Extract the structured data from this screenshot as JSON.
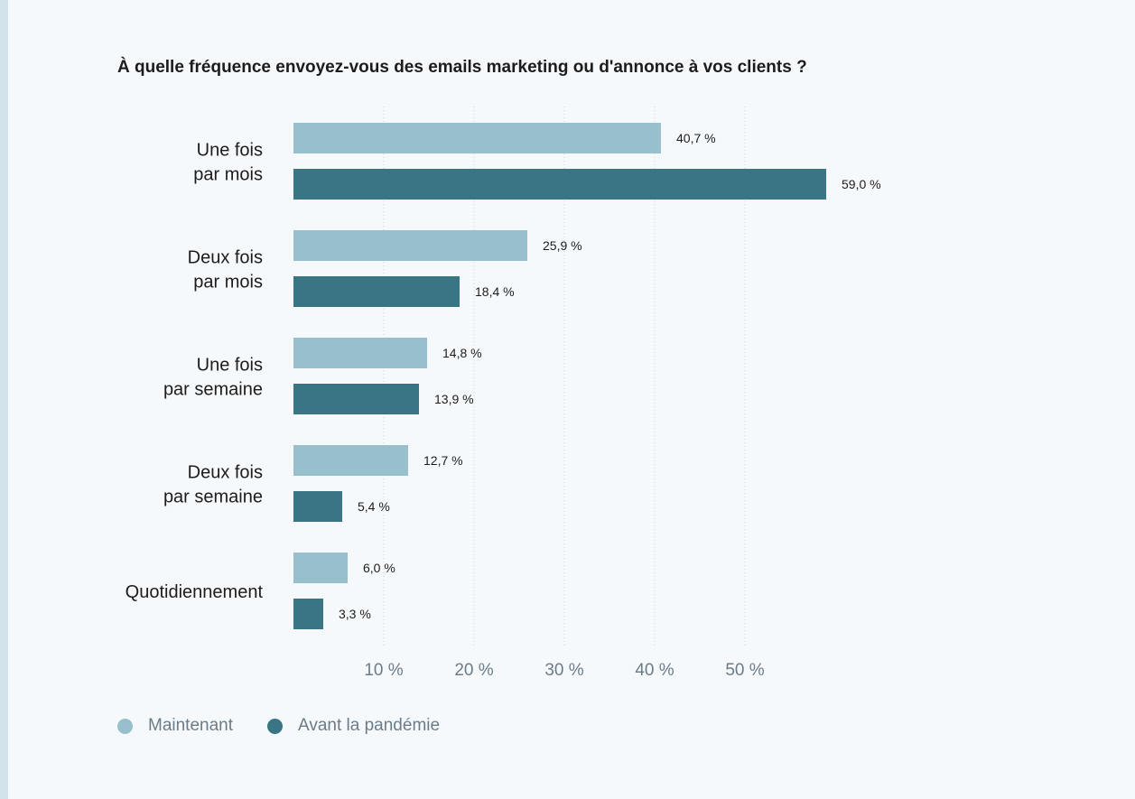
{
  "chart_data": {
    "type": "bar",
    "orientation": "horizontal",
    "title": "À quelle fréquence envoyez-vous des emails marketing ou d'annonce à vos clients ?",
    "categories": [
      [
        "Une fois",
        "par mois"
      ],
      [
        "Deux fois",
        "par mois"
      ],
      [
        "Une fois",
        "par semaine"
      ],
      [
        "Deux fois",
        "par semaine"
      ],
      [
        "Quotidiennement"
      ]
    ],
    "series": [
      {
        "name": "Maintenant",
        "color": "#98bfcc",
        "values": [
          40.7,
          25.9,
          14.8,
          12.7,
          6.0
        ],
        "labels": [
          "40,7 %",
          "25,9 %",
          "14,8 %",
          "12,7 %",
          "6,0 %"
        ]
      },
      {
        "name": "Avant la pandémie",
        "color": "#397585",
        "values": [
          59.0,
          18.4,
          13.9,
          5.4,
          3.3
        ],
        "labels": [
          "59,0 %",
          "18,4 %",
          "13,9 %",
          "5,4 %",
          "3,3 %"
        ]
      }
    ],
    "xticks": [
      10,
      20,
      30,
      40,
      50
    ],
    "xtick_labels": [
      "10 %",
      "20 %",
      "30 %",
      "40 %",
      "50 %"
    ],
    "xlim": [
      0,
      60
    ],
    "grid": true,
    "gridline_color": "#c9d1d6",
    "tick_label_color": "#6b7c88",
    "legend_position": "bottom-left"
  }
}
